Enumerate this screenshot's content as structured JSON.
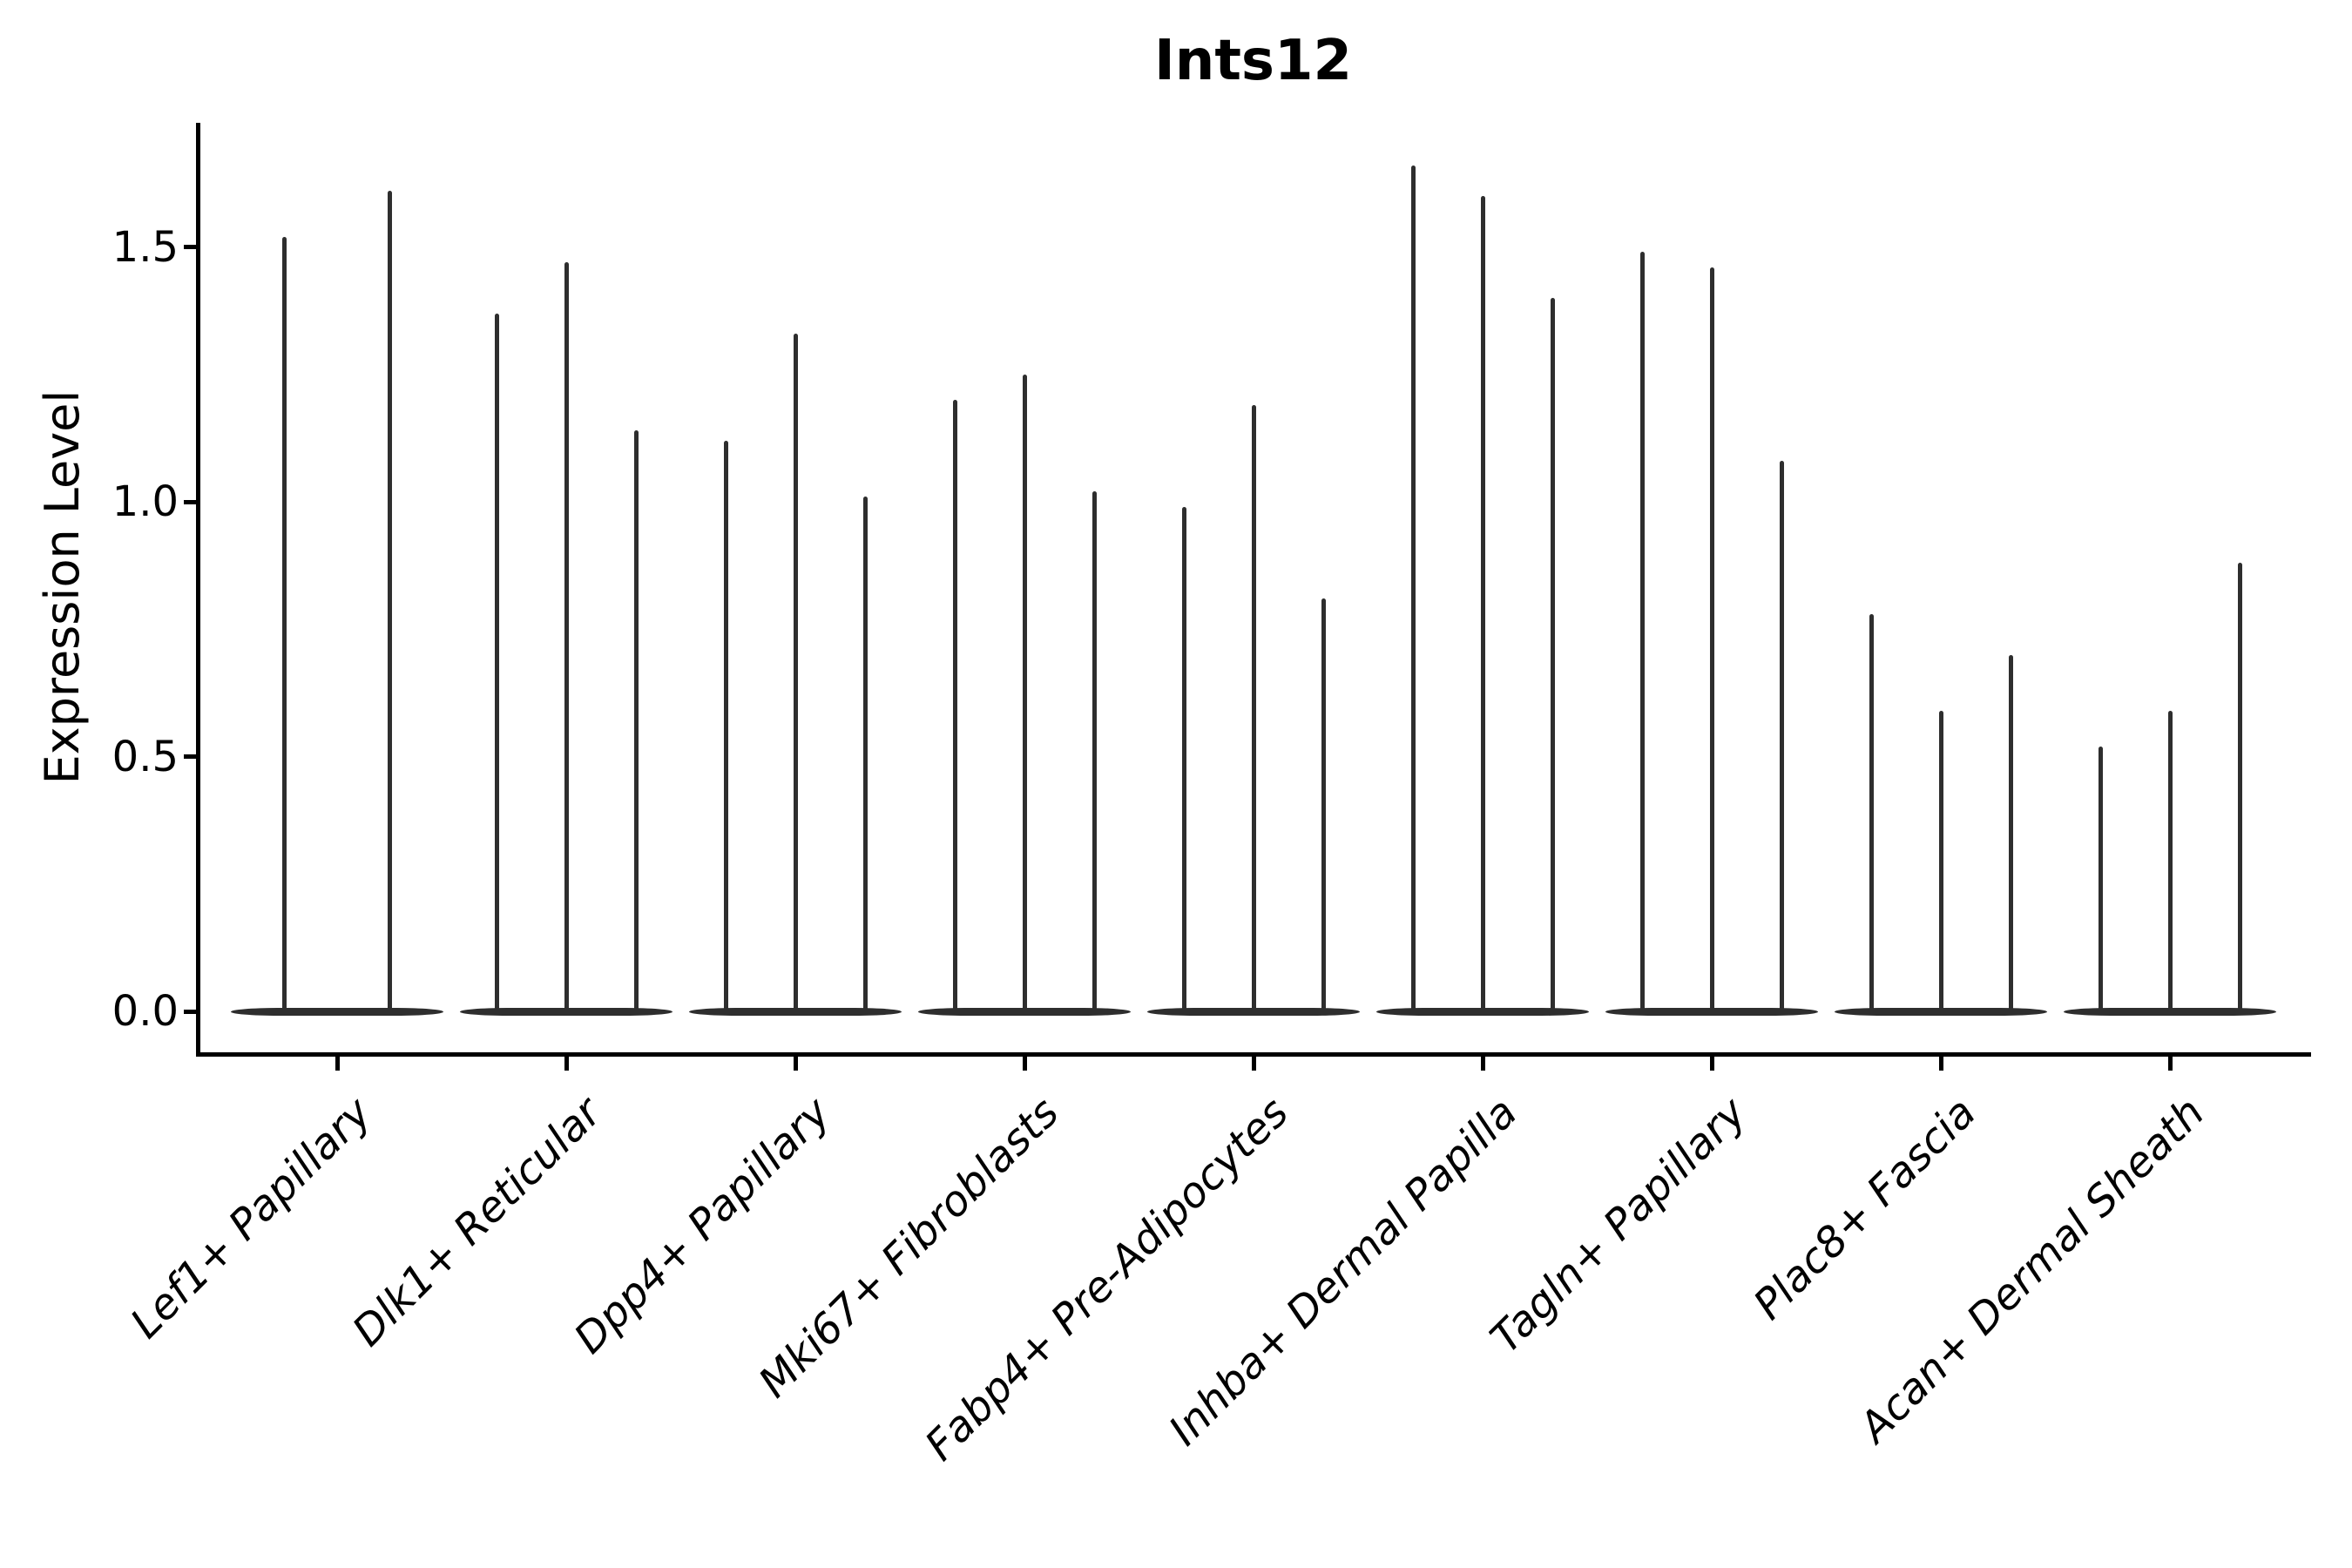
{
  "title": "Ints12",
  "ylabel": "Expression Level",
  "chart_data": {
    "type": "violin",
    "title": "Ints12",
    "xlabel": "",
    "ylabel": "Expression Level",
    "ylim": [
      -0.084,
      1.74
    ],
    "grid": false,
    "legend": "none",
    "yticks": [
      {
        "value": 0.0,
        "label": "0.0"
      },
      {
        "value": 0.5,
        "label": "0.5"
      },
      {
        "value": 1.0,
        "label": "1.0"
      },
      {
        "value": 1.5,
        "label": "1.5"
      }
    ],
    "description": "Violin plot of Ints12 expression across dermal fibroblast cell types; each category contains narrow spike-shaped violins (density concentrated at 0) whose tips mark the maximum expression level.",
    "categories": [
      "Lef1+ Papillary",
      "Dlk1+ Reticular",
      "Dpp4+ Papillary",
      "Mki67+ Fibroblasts",
      "Fabp4+ Pre-Adipocytes",
      "Inhba+ Dermal Papilla",
      "Tagln+ Papillary",
      "Plac8+ Fascia",
      "Acan+ Dermal Sheath"
    ],
    "groups": [
      {
        "label": "Lef1+ Papillary",
        "violin_maxima": [
          1.52,
          1.61
        ]
      },
      {
        "label": "Dlk1+ Reticular",
        "violin_maxima": [
          1.37,
          1.47,
          1.14
        ]
      },
      {
        "label": "Dpp4+ Papillary",
        "violin_maxima": [
          1.12,
          1.33,
          1.01
        ]
      },
      {
        "label": "Mki67+ Fibroblasts",
        "violin_maxima": [
          1.2,
          1.25,
          1.02
        ]
      },
      {
        "label": "Fabp4+ Pre-Adipocytes",
        "violin_maxima": [
          0.99,
          1.19,
          0.81
        ]
      },
      {
        "label": "Inhba+ Dermal Papilla",
        "violin_maxima": [
          1.66,
          1.6,
          1.4
        ]
      },
      {
        "label": "Tagln+ Papillary",
        "violin_maxima": [
          1.49,
          1.46,
          1.08
        ]
      },
      {
        "label": "Plac8+ Fascia",
        "violin_maxima": [
          0.78,
          0.59,
          0.7
        ]
      },
      {
        "label": "Acan+ Dermal Sheath",
        "violin_maxima": [
          0.52,
          0.59,
          0.88
        ]
      }
    ],
    "colors": {
      "violin": "#2e2e2e",
      "axis": "#000000",
      "text": "#000000",
      "background": "#ffffff"
    }
  }
}
